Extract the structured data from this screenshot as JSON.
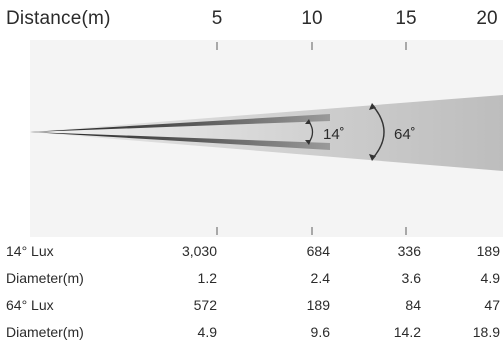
{
  "header": {
    "label": "Distance(m)",
    "ticks": [
      "5",
      "10",
      "15",
      "20"
    ]
  },
  "beam": {
    "narrow_angle": "14˚",
    "wide_angle": "64˚"
  },
  "table": {
    "rows": [
      {
        "label": "14° Lux",
        "values": [
          "3,030",
          "684",
          "336",
          "189"
        ]
      },
      {
        "label": "Diameter(m)",
        "values": [
          "1.2",
          "2.4",
          "3.6",
          "4.9"
        ]
      },
      {
        "label": "64° Lux",
        "values": [
          "572",
          "189",
          "84",
          "47"
        ]
      },
      {
        "label": "Diameter(m)",
        "values": [
          "4.9",
          "9.6",
          "14.2",
          "18.9"
        ]
      }
    ]
  }
}
